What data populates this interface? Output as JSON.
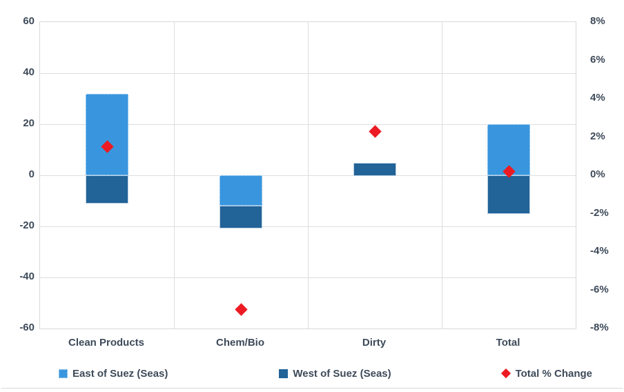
{
  "chart_data": {
    "type": "bar",
    "subtype": "stacked-column-with-secondary-axis-markers",
    "title": "",
    "categories": [
      "Clean Products",
      "Chem/Bio",
      "Dirty",
      "Total"
    ],
    "series": [
      {
        "name": "East of Suez (Seas)",
        "axis": "left",
        "color": "#3996de",
        "values": [
          32,
          -12,
          0,
          20
        ]
      },
      {
        "name": "West of Suez (Seas)",
        "axis": "left",
        "color": "#226398",
        "values": [
          -11,
          -9,
          5,
          -15
        ]
      }
    ],
    "markers": {
      "name": "Total % Change",
      "axis": "right",
      "shape": "diamond",
      "color": "#ec1b23",
      "values": [
        1.5,
        -7.0,
        2.3,
        0.2
      ]
    },
    "left_axis": {
      "min": -60,
      "max": 60,
      "ticks": [
        {
          "v": 60,
          "label": "60"
        },
        {
          "v": 40,
          "label": "40"
        },
        {
          "v": 20,
          "label": "20"
        },
        {
          "v": 0,
          "label": "0"
        },
        {
          "v": -20,
          "label": "-20"
        },
        {
          "v": -40,
          "label": "-40"
        },
        {
          "v": -60,
          "label": "-60"
        }
      ]
    },
    "right_axis": {
      "min": -8,
      "max": 8,
      "ticks": [
        {
          "v": 8,
          "label": "8%"
        },
        {
          "v": 6,
          "label": "6%"
        },
        {
          "v": 4,
          "label": "4%"
        },
        {
          "v": 2,
          "label": "2%"
        },
        {
          "v": 0,
          "label": "0%"
        },
        {
          "v": -2,
          "label": "-2%"
        },
        {
          "v": -4,
          "label": "-4%"
        },
        {
          "v": -6,
          "label": "-6%"
        },
        {
          "v": -8,
          "label": "-8%"
        }
      ]
    },
    "grid": true,
    "legend_position": "bottom",
    "colors": {
      "grid": "#dddddd",
      "axis_text": "#3d4a59",
      "plot_border": "#d9d9d9"
    }
  }
}
